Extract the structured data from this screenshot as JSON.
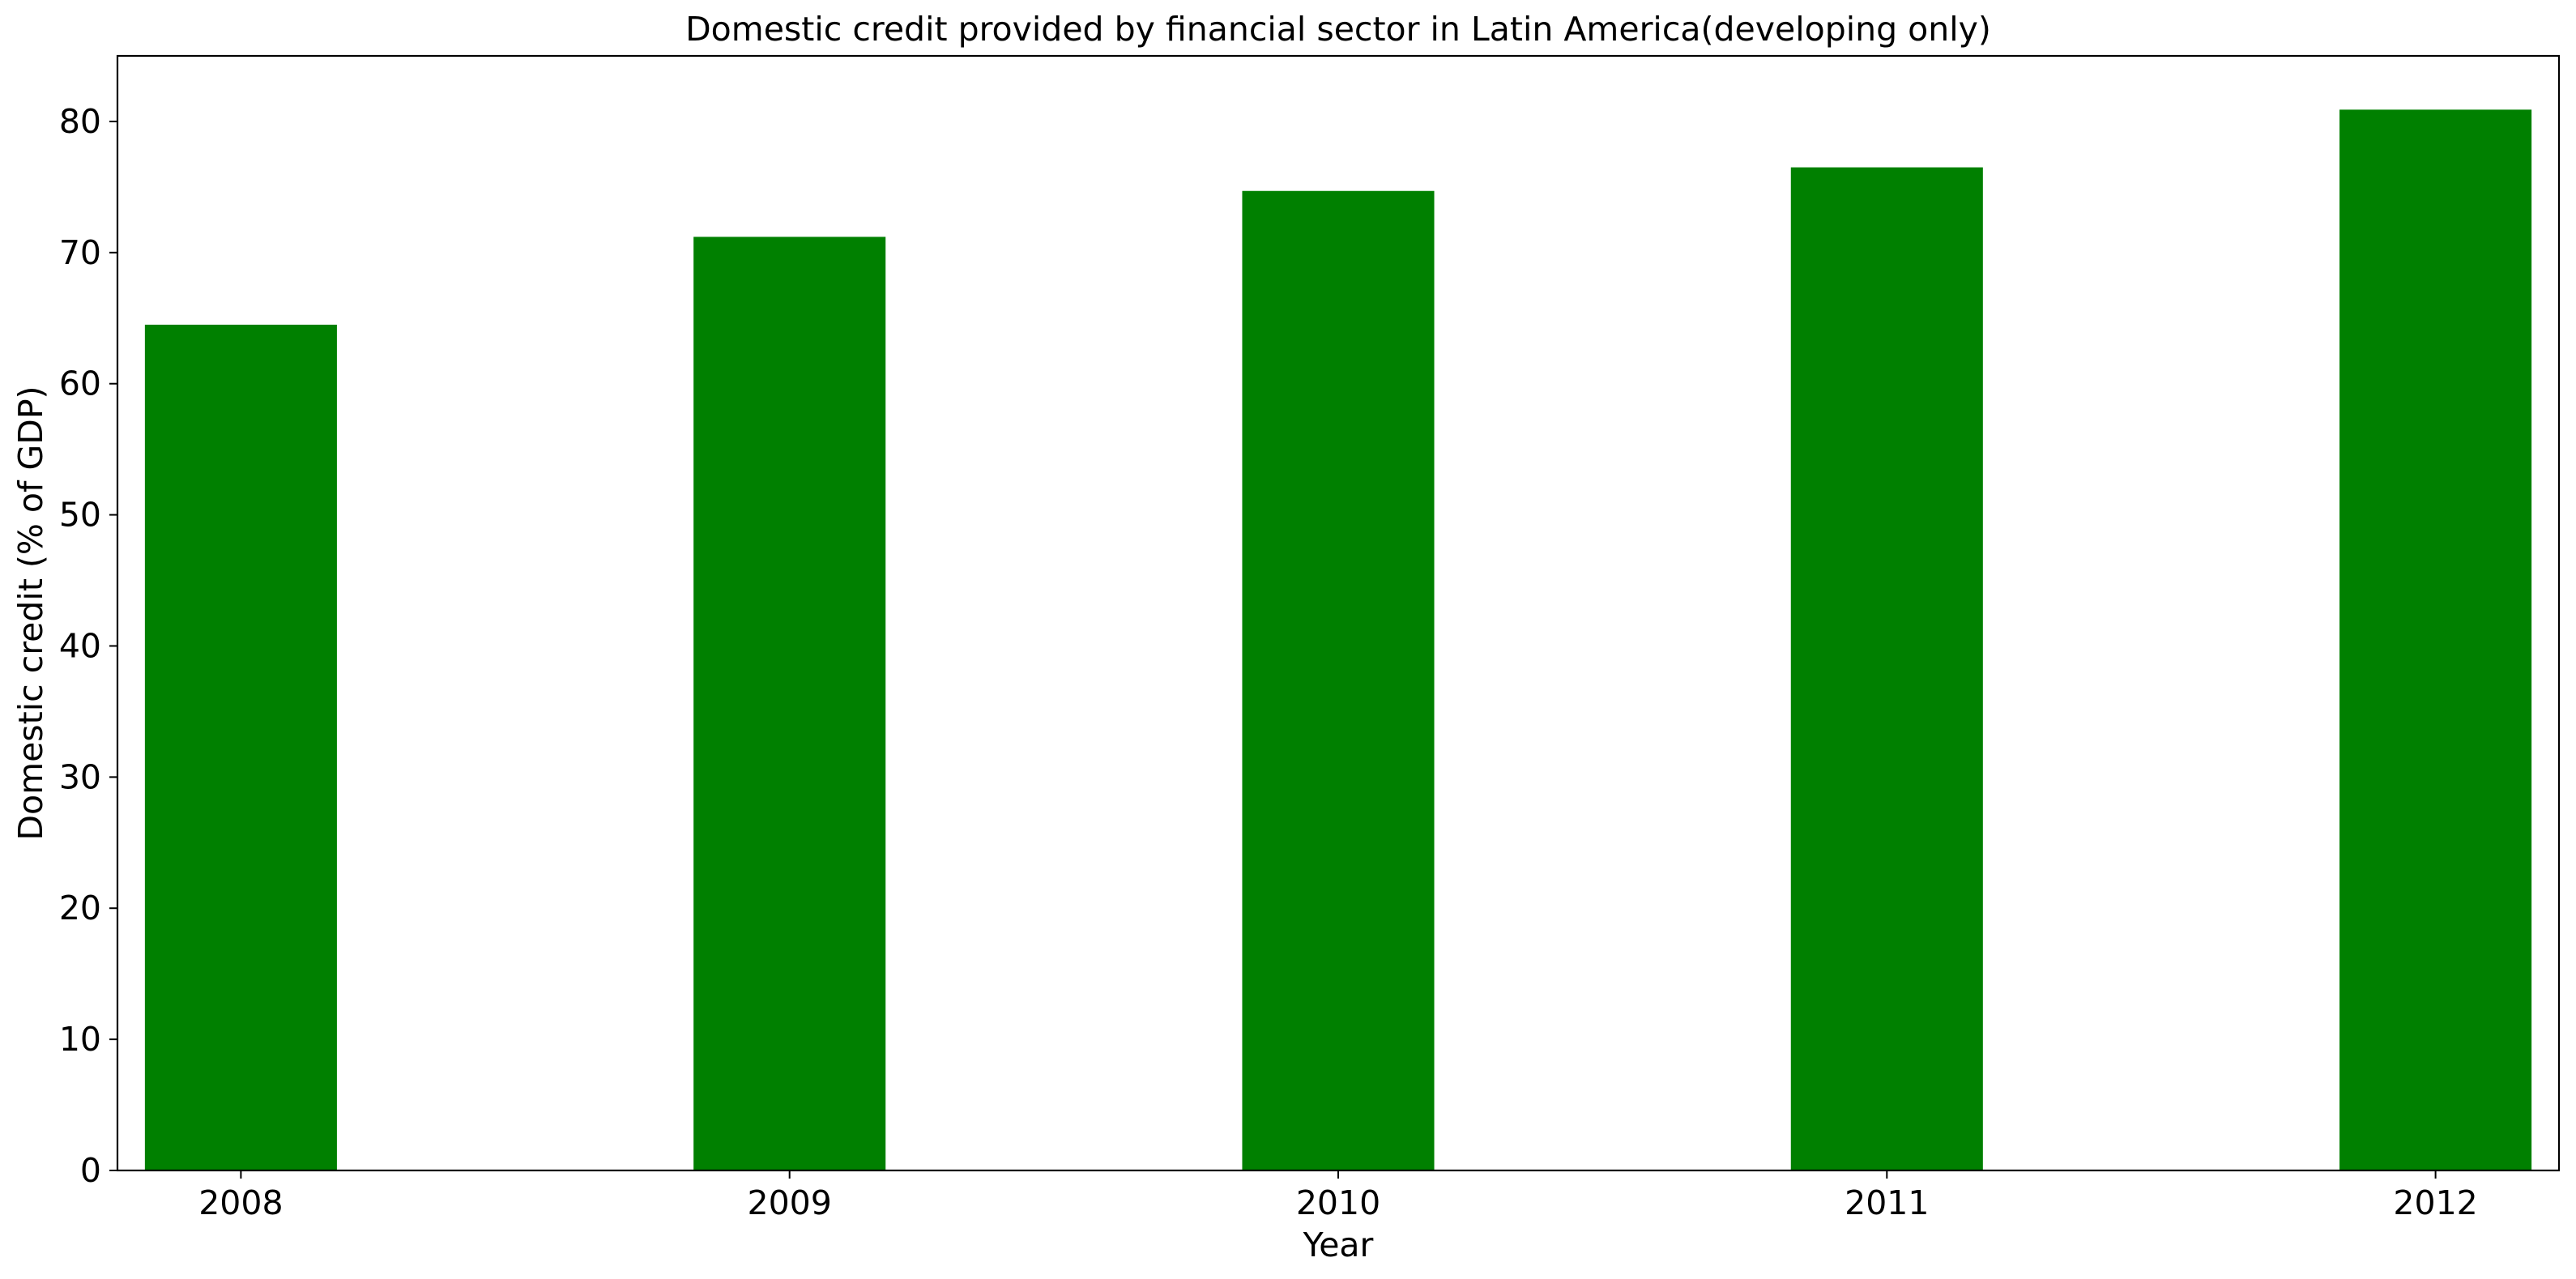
{
  "chart_data": {
    "type": "bar",
    "title": "Domestic credit provided by financial sector in Latin America(developing only)",
    "xlabel": "Year",
    "ylabel": "Domestic credit (% of GDP)",
    "categories": [
      "2008",
      "2009",
      "2010",
      "2011",
      "2012"
    ],
    "values": [
      64.5,
      71.2,
      74.7,
      76.5,
      80.9
    ],
    "ylim": [
      0,
      85
    ],
    "yticks": [
      0,
      10,
      20,
      30,
      40,
      50,
      60,
      70,
      80
    ],
    "ytick_labels": [
      "0",
      "10",
      "20",
      "30",
      "40",
      "50",
      "60",
      "70",
      "80"
    ],
    "bar_color": "#008000",
    "grid": false,
    "legend": "none"
  }
}
